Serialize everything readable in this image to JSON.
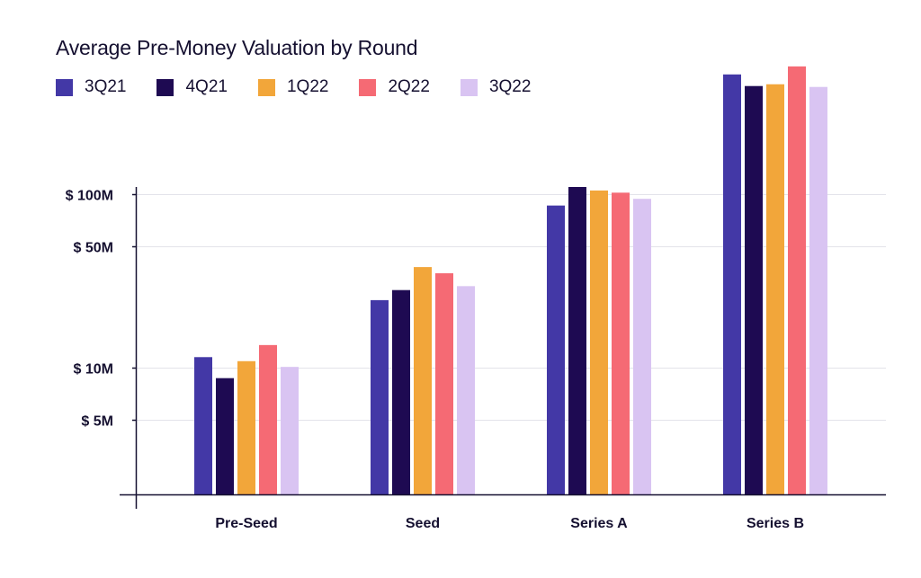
{
  "chart_data": {
    "type": "bar",
    "title": "Average Pre-Money Valuation by Round",
    "categories": [
      "Pre-Seed",
      "Seed",
      "Series A",
      "Series B"
    ],
    "y_scale": "log",
    "y_tick_labels": [
      {
        "value": 100,
        "label": "$ 100M"
      },
      {
        "value": 50,
        "label": "$ 50M"
      },
      {
        "value": 10,
        "label": "$ 10M"
      },
      {
        "value": 5,
        "label": "$ 5M"
      }
    ],
    "ylim": [
      1.6,
      600
    ],
    "grid": true,
    "legend_position": "top-left",
    "series": [
      {
        "name": "3Q21",
        "color": "#4338A6",
        "values": [
          11.5,
          24.5,
          86,
          490
        ]
      },
      {
        "name": "4Q21",
        "color": "#1E0A52",
        "values": [
          8.7,
          28,
          110,
          420
        ]
      },
      {
        "name": "1Q22",
        "color": "#F2A63A",
        "values": [
          10.9,
          38,
          105,
          430
        ]
      },
      {
        "name": "2Q22",
        "color": "#F56A74",
        "values": [
          13.5,
          35,
          102,
          545
        ]
      },
      {
        "name": "3Q22",
        "color": "#D9C4F2",
        "values": [
          10.1,
          29.5,
          94,
          415
        ]
      }
    ]
  }
}
